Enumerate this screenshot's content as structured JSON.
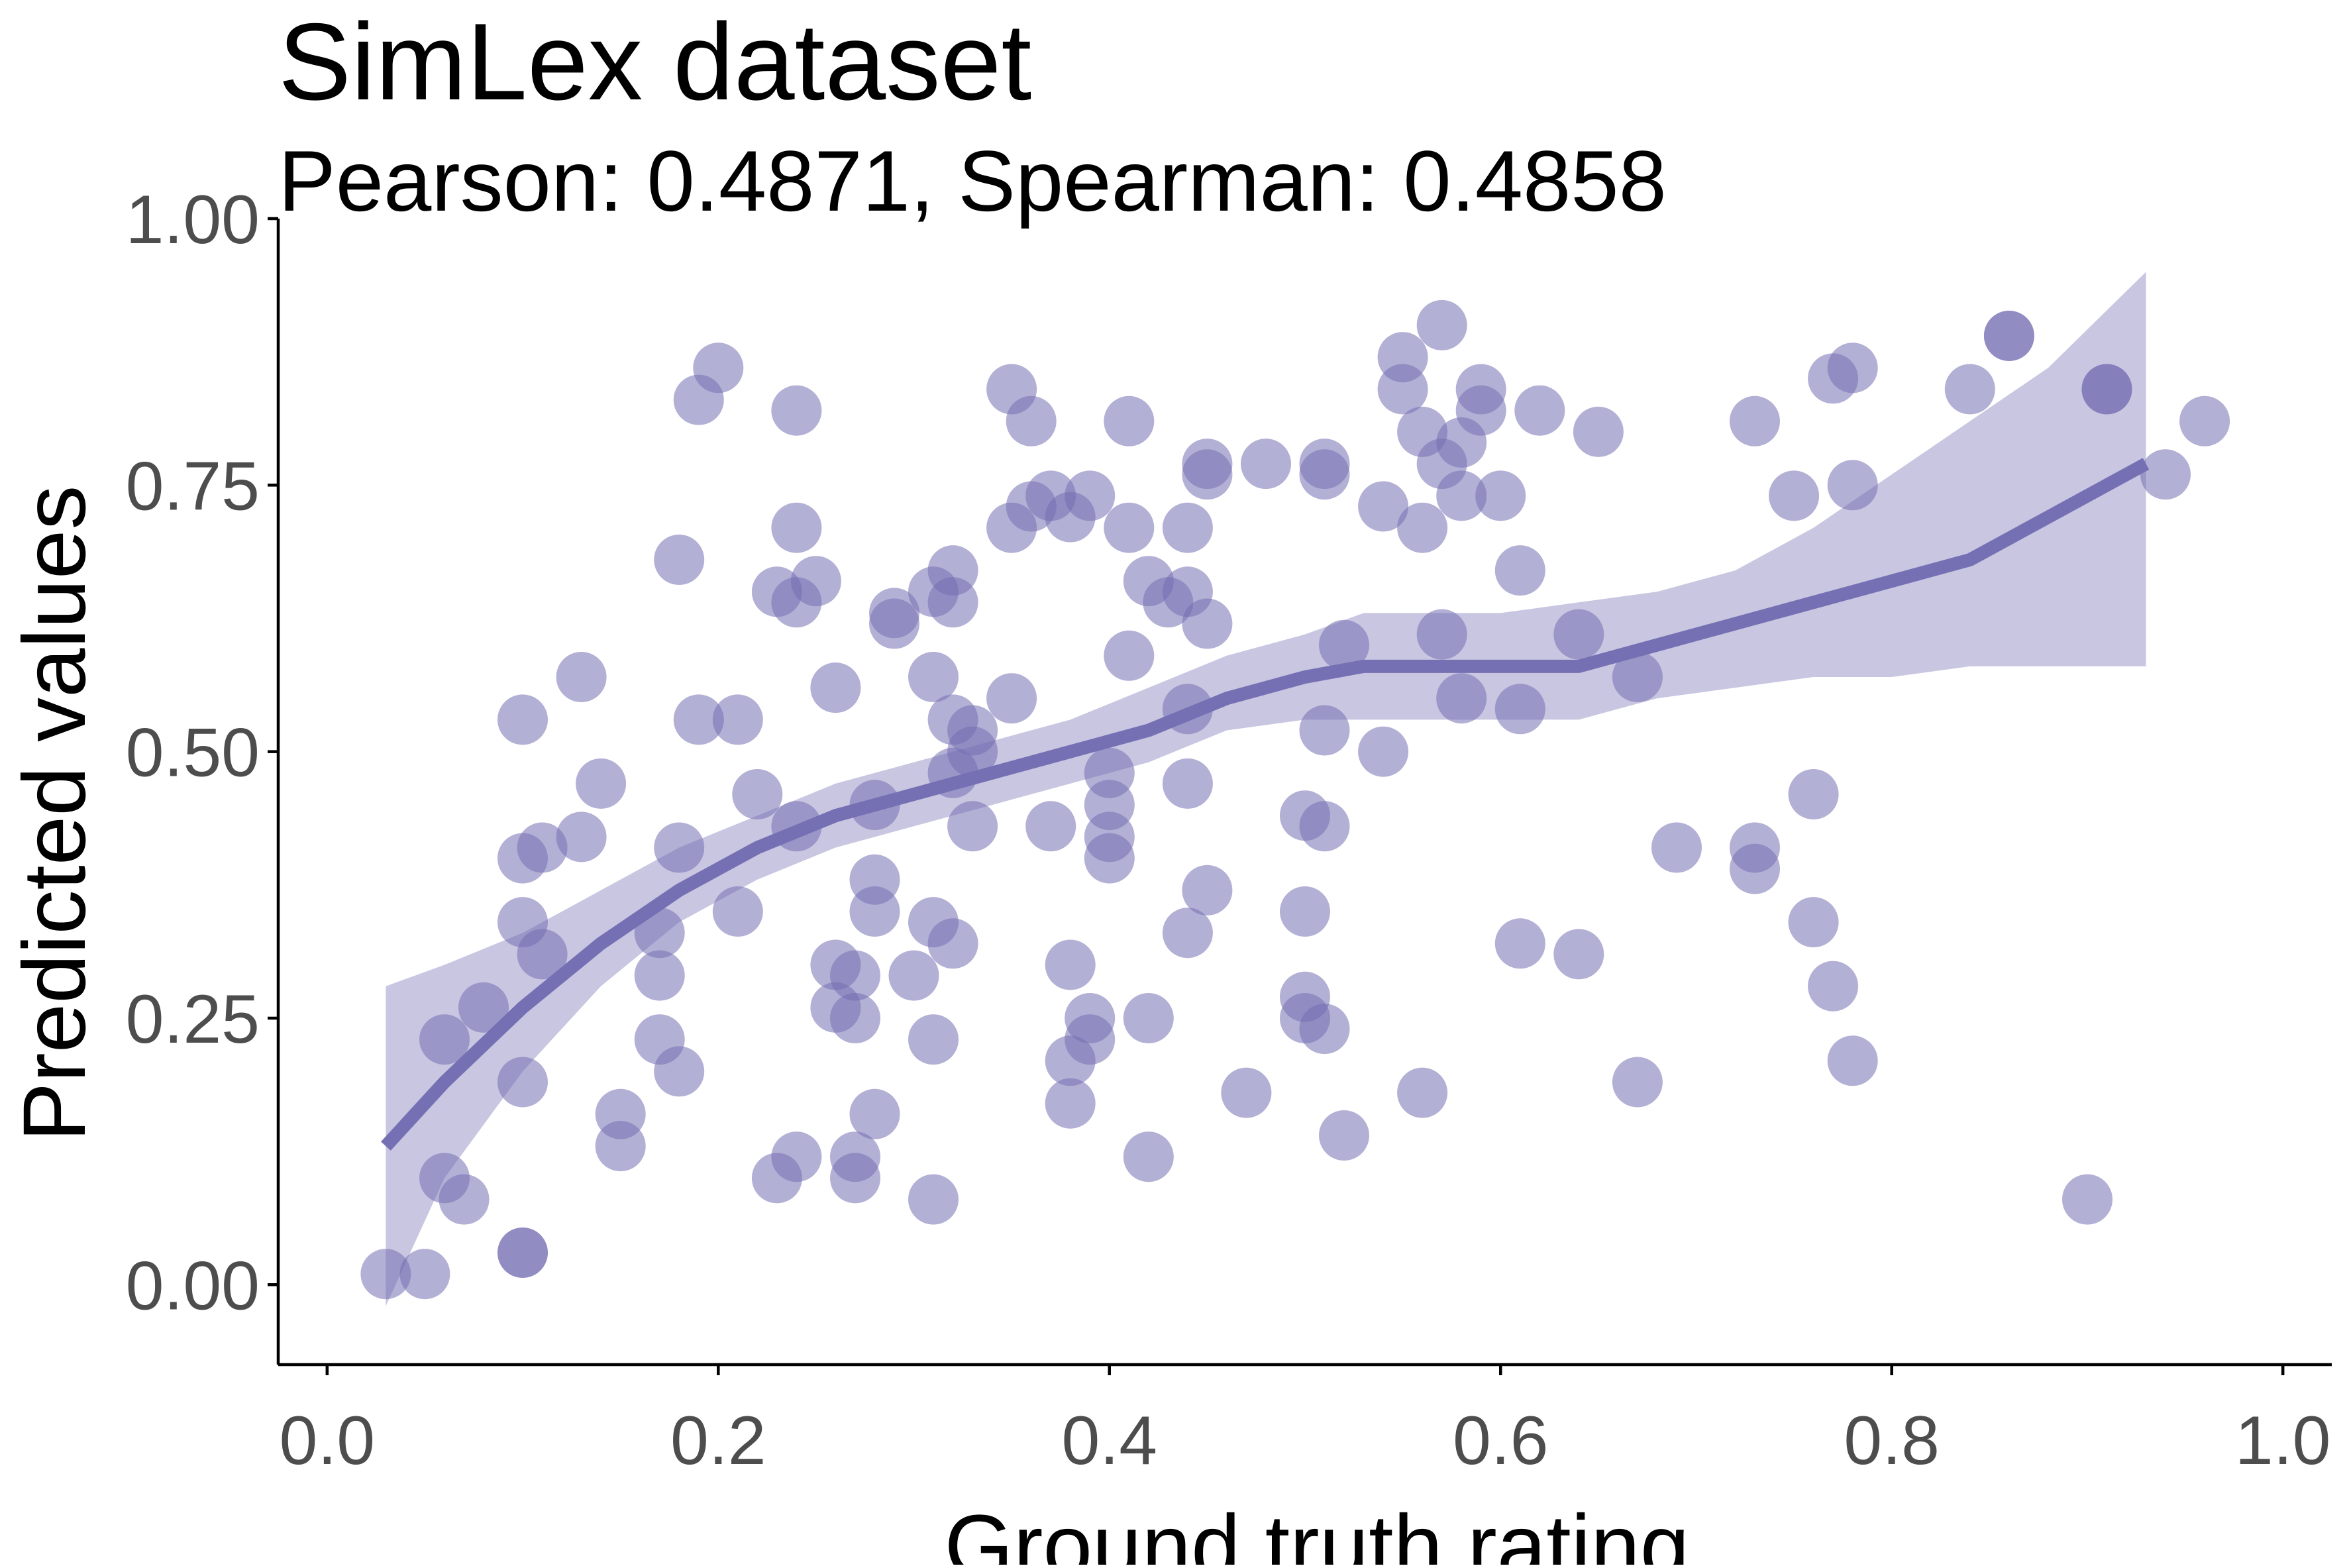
{
  "chart_data": {
    "type": "scatter",
    "title": "SimLex dataset",
    "subtitle": "Pearson: 0.4871, Spearman: 0.4858",
    "xlabel": "Ground truth rating",
    "ylabel": "Predicted values",
    "xlim": [
      -0.025,
      1.025
    ],
    "ylim": [
      -0.075,
      1.0
    ],
    "x_ticks": [
      {
        "value": 0.0,
        "label": "0.0"
      },
      {
        "value": 0.2,
        "label": "0.2"
      },
      {
        "value": 0.4,
        "label": "0.4"
      },
      {
        "value": 0.6,
        "label": "0.6"
      },
      {
        "value": 0.8,
        "label": "0.8"
      },
      {
        "value": 1.0,
        "label": "1.0"
      }
    ],
    "y_ticks": [
      {
        "value": 0.0,
        "label": "0.00"
      },
      {
        "value": 0.25,
        "label": "0.25"
      },
      {
        "value": 0.5,
        "label": "0.50"
      },
      {
        "value": 0.75,
        "label": "0.75"
      },
      {
        "value": 1.0,
        "label": "1.00"
      }
    ],
    "grid": false,
    "colors": {
      "point": "#7570b3",
      "smooth_line": "#7570b3",
      "confidence_band": "#7570b3",
      "axis": "#000000",
      "tick_label": "#4d4d4d"
    },
    "points": [
      {
        "x": 0.03,
        "y": 0.01
      },
      {
        "x": 0.05,
        "y": 0.01
      },
      {
        "x": 0.06,
        "y": 0.1
      },
      {
        "x": 0.07,
        "y": 0.08
      },
      {
        "x": 0.06,
        "y": 0.23
      },
      {
        "x": 0.08,
        "y": 0.26
      },
      {
        "x": 0.1,
        "y": 0.03
      },
      {
        "x": 0.1,
        "y": 0.03
      },
      {
        "x": 0.1,
        "y": 0.19
      },
      {
        "x": 0.1,
        "y": 0.34
      },
      {
        "x": 0.1,
        "y": 0.4
      },
      {
        "x": 0.11,
        "y": 0.41
      },
      {
        "x": 0.11,
        "y": 0.31
      },
      {
        "x": 0.1,
        "y": 0.53
      },
      {
        "x": 0.13,
        "y": 0.42
      },
      {
        "x": 0.14,
        "y": 0.47
      },
      {
        "x": 0.13,
        "y": 0.57
      },
      {
        "x": 0.15,
        "y": 0.16
      },
      {
        "x": 0.15,
        "y": 0.13
      },
      {
        "x": 0.17,
        "y": 0.23
      },
      {
        "x": 0.17,
        "y": 0.29
      },
      {
        "x": 0.17,
        "y": 0.33
      },
      {
        "x": 0.18,
        "y": 0.2
      },
      {
        "x": 0.18,
        "y": 0.41
      },
      {
        "x": 0.18,
        "y": 0.68
      },
      {
        "x": 0.19,
        "y": 0.53
      },
      {
        "x": 0.19,
        "y": 0.83
      },
      {
        "x": 0.2,
        "y": 0.86
      },
      {
        "x": 0.21,
        "y": 0.53
      },
      {
        "x": 0.21,
        "y": 0.35
      },
      {
        "x": 0.22,
        "y": 0.46
      },
      {
        "x": 0.23,
        "y": 0.65
      },
      {
        "x": 0.23,
        "y": 0.1
      },
      {
        "x": 0.24,
        "y": 0.12
      },
      {
        "x": 0.24,
        "y": 0.43
      },
      {
        "x": 0.24,
        "y": 0.64
      },
      {
        "x": 0.25,
        "y": 0.66
      },
      {
        "x": 0.24,
        "y": 0.71
      },
      {
        "x": 0.24,
        "y": 0.82
      },
      {
        "x": 0.26,
        "y": 0.56
      },
      {
        "x": 0.26,
        "y": 0.3
      },
      {
        "x": 0.26,
        "y": 0.26
      },
      {
        "x": 0.27,
        "y": 0.1
      },
      {
        "x": 0.27,
        "y": 0.12
      },
      {
        "x": 0.27,
        "y": 0.29
      },
      {
        "x": 0.27,
        "y": 0.25
      },
      {
        "x": 0.28,
        "y": 0.16
      },
      {
        "x": 0.28,
        "y": 0.35
      },
      {
        "x": 0.28,
        "y": 0.38
      },
      {
        "x": 0.28,
        "y": 0.45
      },
      {
        "x": 0.29,
        "y": 0.63
      },
      {
        "x": 0.29,
        "y": 0.62
      },
      {
        "x": 0.3,
        "y": 0.29
      },
      {
        "x": 0.31,
        "y": 0.34
      },
      {
        "x": 0.31,
        "y": 0.23
      },
      {
        "x": 0.31,
        "y": 0.65
      },
      {
        "x": 0.31,
        "y": 0.08
      },
      {
        "x": 0.31,
        "y": 0.57
      },
      {
        "x": 0.32,
        "y": 0.48
      },
      {
        "x": 0.32,
        "y": 0.53
      },
      {
        "x": 0.32,
        "y": 0.64
      },
      {
        "x": 0.32,
        "y": 0.67
      },
      {
        "x": 0.32,
        "y": 0.32
      },
      {
        "x": 0.33,
        "y": 0.43
      },
      {
        "x": 0.33,
        "y": 0.5
      },
      {
        "x": 0.33,
        "y": 0.52
      },
      {
        "x": 0.35,
        "y": 0.55
      },
      {
        "x": 0.35,
        "y": 0.71
      },
      {
        "x": 0.35,
        "y": 0.84
      },
      {
        "x": 0.36,
        "y": 0.81
      },
      {
        "x": 0.36,
        "y": 0.73
      },
      {
        "x": 0.37,
        "y": 0.43
      },
      {
        "x": 0.37,
        "y": 0.74
      },
      {
        "x": 0.38,
        "y": 0.17
      },
      {
        "x": 0.38,
        "y": 0.3
      },
      {
        "x": 0.38,
        "y": 0.72
      },
      {
        "x": 0.38,
        "y": 0.21
      },
      {
        "x": 0.39,
        "y": 0.23
      },
      {
        "x": 0.39,
        "y": 0.25
      },
      {
        "x": 0.39,
        "y": 0.74
      },
      {
        "x": 0.4,
        "y": 0.4
      },
      {
        "x": 0.4,
        "y": 0.42
      },
      {
        "x": 0.4,
        "y": 0.45
      },
      {
        "x": 0.4,
        "y": 0.48
      },
      {
        "x": 0.41,
        "y": 0.71
      },
      {
        "x": 0.41,
        "y": 0.59
      },
      {
        "x": 0.41,
        "y": 0.81
      },
      {
        "x": 0.42,
        "y": 0.25
      },
      {
        "x": 0.42,
        "y": 0.12
      },
      {
        "x": 0.42,
        "y": 0.66
      },
      {
        "x": 0.43,
        "y": 0.64
      },
      {
        "x": 0.44,
        "y": 0.71
      },
      {
        "x": 0.44,
        "y": 0.65
      },
      {
        "x": 0.44,
        "y": 0.54
      },
      {
        "x": 0.44,
        "y": 0.47
      },
      {
        "x": 0.44,
        "y": 0.33
      },
      {
        "x": 0.45,
        "y": 0.37
      },
      {
        "x": 0.45,
        "y": 0.62
      },
      {
        "x": 0.45,
        "y": 0.77
      },
      {
        "x": 0.45,
        "y": 0.76
      },
      {
        "x": 0.47,
        "y": 0.18
      },
      {
        "x": 0.48,
        "y": 0.77
      },
      {
        "x": 0.5,
        "y": 0.35
      },
      {
        "x": 0.5,
        "y": 0.25
      },
      {
        "x": 0.5,
        "y": 0.27
      },
      {
        "x": 0.5,
        "y": 0.44
      },
      {
        "x": 0.51,
        "y": 0.43
      },
      {
        "x": 0.51,
        "y": 0.24
      },
      {
        "x": 0.51,
        "y": 0.52
      },
      {
        "x": 0.51,
        "y": 0.76
      },
      {
        "x": 0.51,
        "y": 0.77
      },
      {
        "x": 0.52,
        "y": 0.6
      },
      {
        "x": 0.52,
        "y": 0.14
      },
      {
        "x": 0.54,
        "y": 0.5
      },
      {
        "x": 0.54,
        "y": 0.73
      },
      {
        "x": 0.55,
        "y": 0.84
      },
      {
        "x": 0.55,
        "y": 0.87
      },
      {
        "x": 0.56,
        "y": 0.18
      },
      {
        "x": 0.56,
        "y": 0.8
      },
      {
        "x": 0.56,
        "y": 0.71
      },
      {
        "x": 0.57,
        "y": 0.77
      },
      {
        "x": 0.57,
        "y": 0.9
      },
      {
        "x": 0.57,
        "y": 0.61
      },
      {
        "x": 0.58,
        "y": 0.55
      },
      {
        "x": 0.58,
        "y": 0.74
      },
      {
        "x": 0.58,
        "y": 0.79
      },
      {
        "x": 0.59,
        "y": 0.84
      },
      {
        "x": 0.59,
        "y": 0.82
      },
      {
        "x": 0.6,
        "y": 0.74
      },
      {
        "x": 0.61,
        "y": 0.67
      },
      {
        "x": 0.61,
        "y": 0.54
      },
      {
        "x": 0.61,
        "y": 0.32
      },
      {
        "x": 0.62,
        "y": 0.82
      },
      {
        "x": 0.64,
        "y": 0.31
      },
      {
        "x": 0.64,
        "y": 0.61
      },
      {
        "x": 0.65,
        "y": 0.8
      },
      {
        "x": 0.67,
        "y": 0.19
      },
      {
        "x": 0.67,
        "y": 0.57
      },
      {
        "x": 0.69,
        "y": 0.41
      },
      {
        "x": 0.73,
        "y": 0.81
      },
      {
        "x": 0.73,
        "y": 0.41
      },
      {
        "x": 0.73,
        "y": 0.39
      },
      {
        "x": 0.75,
        "y": 0.74
      },
      {
        "x": 0.76,
        "y": 0.34
      },
      {
        "x": 0.76,
        "y": 0.46
      },
      {
        "x": 0.77,
        "y": 0.28
      },
      {
        "x": 0.77,
        "y": 0.85
      },
      {
        "x": 0.78,
        "y": 0.86
      },
      {
        "x": 0.78,
        "y": 0.21
      },
      {
        "x": 0.78,
        "y": 0.75
      },
      {
        "x": 0.84,
        "y": 0.84
      },
      {
        "x": 0.86,
        "y": 0.89
      },
      {
        "x": 0.86,
        "y": 0.89
      },
      {
        "x": 0.9,
        "y": 0.08
      },
      {
        "x": 0.91,
        "y": 0.84
      },
      {
        "x": 0.91,
        "y": 0.84
      },
      {
        "x": 0.94,
        "y": 0.76
      },
      {
        "x": 0.96,
        "y": 0.81
      }
    ],
    "smooth": {
      "x": [
        0.03,
        0.06,
        0.1,
        0.14,
        0.18,
        0.22,
        0.26,
        0.3,
        0.34,
        0.38,
        0.42,
        0.46,
        0.5,
        0.53,
        0.56,
        0.6,
        0.64,
        0.68,
        0.72,
        0.76,
        0.8,
        0.84,
        0.88,
        0.93
      ],
      "y": [
        0.13,
        0.19,
        0.26,
        0.32,
        0.37,
        0.41,
        0.44,
        0.46,
        0.48,
        0.5,
        0.52,
        0.55,
        0.57,
        0.58,
        0.58,
        0.58,
        0.58,
        0.6,
        0.62,
        0.64,
        0.66,
        0.68,
        0.72,
        0.77
      ],
      "lo": [
        -0.02,
        0.1,
        0.2,
        0.28,
        0.34,
        0.38,
        0.41,
        0.43,
        0.45,
        0.47,
        0.49,
        0.52,
        0.53,
        0.53,
        0.53,
        0.53,
        0.53,
        0.55,
        0.56,
        0.57,
        0.57,
        0.58,
        0.58,
        0.58
      ],
      "hi": [
        0.28,
        0.3,
        0.33,
        0.37,
        0.41,
        0.44,
        0.47,
        0.49,
        0.51,
        0.53,
        0.56,
        0.59,
        0.61,
        0.63,
        0.63,
        0.63,
        0.64,
        0.65,
        0.67,
        0.71,
        0.76,
        0.81,
        0.86,
        0.95
      ]
    }
  }
}
